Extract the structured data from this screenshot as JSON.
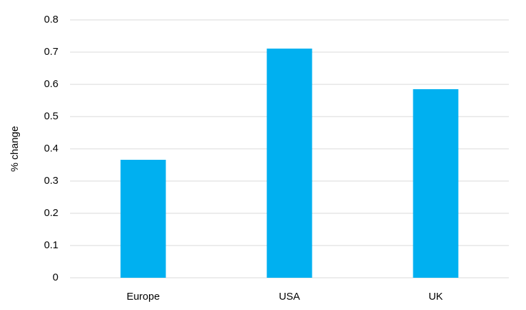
{
  "chart_data": {
    "type": "bar",
    "y_label": "% change",
    "categories": [
      "Europe",
      "USA",
      "UK"
    ],
    "values": [
      0.366,
      0.711,
      0.585
    ],
    "color": "#00b0f0",
    "ylim": [
      0,
      0.8
    ],
    "yticks": [
      0,
      0.1,
      0.2,
      0.3,
      0.4,
      0.5,
      0.6,
      0.7,
      0.8
    ],
    "grid": true
  }
}
